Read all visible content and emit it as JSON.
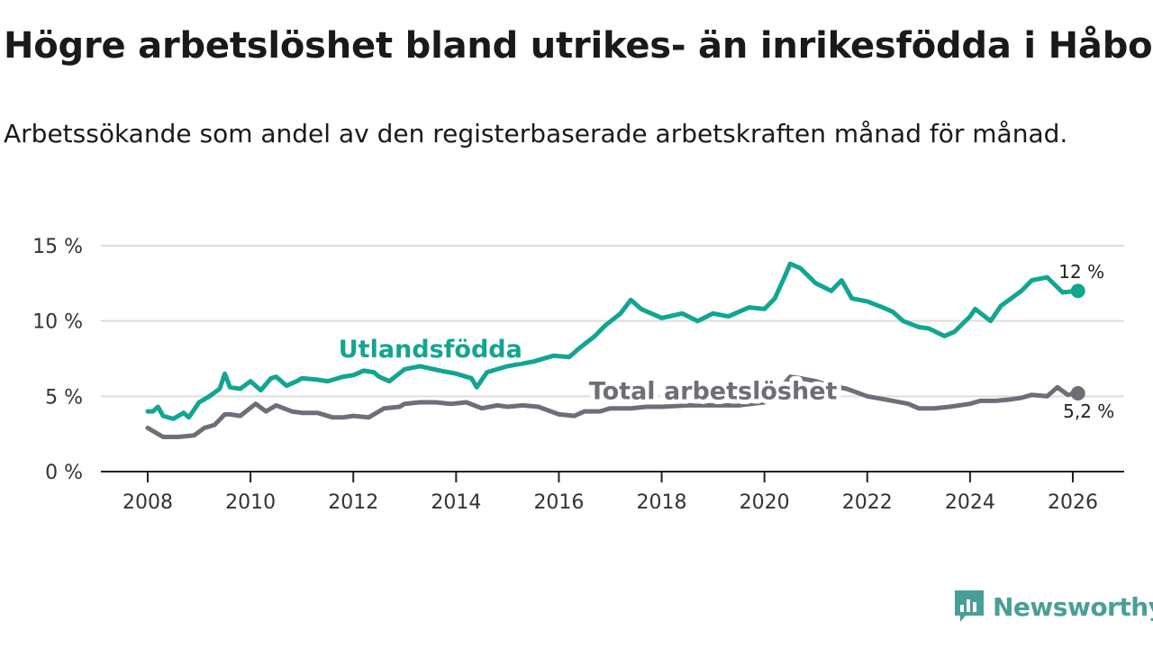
{
  "title": "Högre arbetslöshet bland utrikes- än inrikesfödda i Håbo",
  "subtitle": "Arbetssökande som andel av den registerbaserade arbetskraften månad för månad.",
  "brand": {
    "name": "Newsworthy",
    "icon": "bar-chart-speech-icon"
  },
  "colors": {
    "utlandsfodda": "#12a592",
    "total": "#6e6e78",
    "grid": "#dddddd",
    "axis": "#222222"
  },
  "chart_data": {
    "type": "line",
    "title": "Högre arbetslöshet bland utrikes- än inrikesfödda i Håbo",
    "xlabel": "",
    "ylabel": "",
    "xlim": [
      2007.8,
      2027.0
    ],
    "ylim": [
      0,
      15
    ],
    "yticks": [
      0,
      5,
      10,
      15
    ],
    "ytick_labels": [
      "0 %",
      "5 %",
      "10 %",
      "15 %"
    ],
    "xticks": [
      2008,
      2010,
      2012,
      2014,
      2016,
      2018,
      2020,
      2022,
      2024,
      2026
    ],
    "xtick_labels": [
      "2008",
      "2010",
      "2012",
      "2014",
      "2016",
      "2018",
      "2020",
      "2022",
      "2024",
      "2026"
    ],
    "grid": true,
    "series": [
      {
        "name": "Utlandsfödda",
        "color": "#12a592",
        "end_label": "12 %",
        "x": [
          2008.0,
          2008.1,
          2008.2,
          2008.3,
          2008.5,
          2008.7,
          2008.8,
          2009.0,
          2009.2,
          2009.4,
          2009.5,
          2009.6,
          2009.8,
          2010.0,
          2010.2,
          2010.4,
          2010.5,
          2010.7,
          2010.9,
          2011.0,
          2011.3,
          2011.5,
          2011.8,
          2012.0,
          2012.2,
          2012.4,
          2012.5,
          2012.7,
          2013.0,
          2013.3,
          2013.7,
          2014.0,
          2014.3,
          2014.4,
          2014.6,
          2015.0,
          2015.5,
          2015.9,
          2016.2,
          2016.4,
          2016.7,
          2016.9,
          2017.2,
          2017.4,
          2017.6,
          2018.0,
          2018.4,
          2018.7,
          2019.0,
          2019.3,
          2019.7,
          2020.0,
          2020.2,
          2020.4,
          2020.5,
          2020.7,
          2021.0,
          2021.3,
          2021.5,
          2021.7,
          2022.0,
          2022.3,
          2022.5,
          2022.7,
          2023.0,
          2023.2,
          2023.5,
          2023.7,
          2024.0,
          2024.1,
          2024.4,
          2024.6,
          2024.8,
          2025.0,
          2025.2,
          2025.5,
          2025.8,
          2026.1
        ],
        "y": [
          4.0,
          4.0,
          4.3,
          3.7,
          3.5,
          3.9,
          3.6,
          4.6,
          5.0,
          5.5,
          6.5,
          5.6,
          5.5,
          6.0,
          5.4,
          6.2,
          6.3,
          5.7,
          6.0,
          6.2,
          6.1,
          6.0,
          6.3,
          6.4,
          6.7,
          6.6,
          6.3,
          6.0,
          6.8,
          7.0,
          6.7,
          6.5,
          6.2,
          5.6,
          6.6,
          7.0,
          7.3,
          7.7,
          7.6,
          8.2,
          9.0,
          9.7,
          10.5,
          11.4,
          10.8,
          10.2,
          10.5,
          10.0,
          10.5,
          10.3,
          10.9,
          10.8,
          11.5,
          13.0,
          13.8,
          13.5,
          12.5,
          12.0,
          12.7,
          11.5,
          11.3,
          10.9,
          10.6,
          10.0,
          9.6,
          9.5,
          9.0,
          9.3,
          10.3,
          10.8,
          10.0,
          11.0,
          11.5,
          12.0,
          12.7,
          12.9,
          11.9,
          12.0
        ]
      },
      {
        "name": "Total arbetslöshet",
        "color": "#6e6e78",
        "end_label": "5,2 %",
        "x": [
          2008.0,
          2008.2,
          2008.3,
          2008.6,
          2008.9,
          2009.1,
          2009.3,
          2009.5,
          2009.6,
          2009.8,
          2010.1,
          2010.3,
          2010.5,
          2010.8,
          2011.0,
          2011.3,
          2011.6,
          2011.8,
          2012.0,
          2012.3,
          2012.6,
          2012.9,
          2013.0,
          2013.3,
          2013.6,
          2013.9,
          2014.2,
          2014.5,
          2014.8,
          2015.0,
          2015.3,
          2015.6,
          2016.0,
          2016.3,
          2016.5,
          2016.8,
          2017.0,
          2017.4,
          2017.7,
          2018.0,
          2018.5,
          2019.0,
          2019.5,
          2020.0,
          2020.3,
          2020.5,
          2020.7,
          2021.0,
          2021.3,
          2021.6,
          2022.0,
          2022.5,
          2022.8,
          2023.0,
          2023.3,
          2023.6,
          2024.0,
          2024.2,
          2024.5,
          2024.8,
          2025.0,
          2025.2,
          2025.5,
          2025.7,
          2025.9,
          2026.1
        ],
        "y": [
          2.9,
          2.5,
          2.3,
          2.3,
          2.4,
          2.9,
          3.1,
          3.8,
          3.8,
          3.7,
          4.5,
          4.0,
          4.4,
          4.0,
          3.9,
          3.9,
          3.6,
          3.6,
          3.7,
          3.6,
          4.2,
          4.3,
          4.5,
          4.6,
          4.6,
          4.5,
          4.6,
          4.2,
          4.4,
          4.3,
          4.4,
          4.3,
          3.8,
          3.7,
          4.0,
          4.0,
          4.2,
          4.2,
          4.3,
          4.3,
          4.4,
          4.4,
          4.4,
          4.6,
          5.5,
          6.3,
          6.2,
          6.0,
          5.7,
          5.5,
          5.0,
          4.7,
          4.5,
          4.2,
          4.2,
          4.3,
          4.5,
          4.7,
          4.7,
          4.8,
          4.9,
          5.1,
          5.0,
          5.6,
          5.1,
          5.2
        ]
      }
    ],
    "annotations": [
      {
        "text": "Utlandsfödda",
        "series": 0,
        "x": 2013.5,
        "y": 7.6
      },
      {
        "text": "Total arbetslöshet",
        "series": 1,
        "x": 2019.0,
        "y": 4.8
      }
    ]
  }
}
